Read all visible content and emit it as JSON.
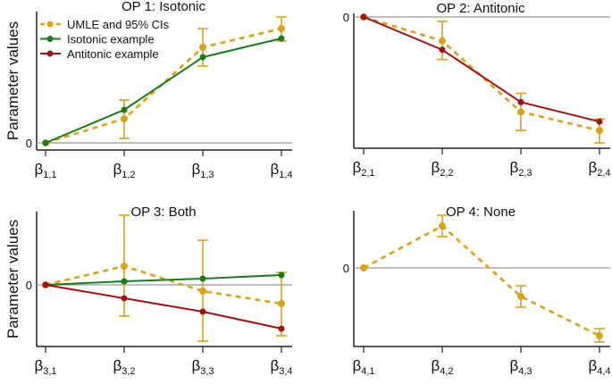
{
  "chart_data": [
    {
      "type": "line",
      "title": "OP 1: Isotonic",
      "ylabel": "Parameter values",
      "ytick_labels": [
        "0"
      ],
      "ylim": [
        -0.08,
        1.47
      ],
      "categories": [
        {
          "sym": "β",
          "sub": "1,1"
        },
        {
          "sym": "β",
          "sub": "1,2"
        },
        {
          "sym": "β",
          "sub": "1,3"
        },
        {
          "sym": "β",
          "sub": "1,4"
        }
      ],
      "umle": [
        0,
        0.27,
        1.07,
        1.28
      ],
      "ci": [
        null,
        [
          0.05,
          0.48
        ],
        [
          0.86,
          1.28
        ],
        [
          1.14,
          1.41
        ]
      ],
      "isotonic": [
        0,
        0.37,
        0.96,
        1.17
      ],
      "antitonic": null,
      "legend": {
        "placement": "top-left",
        "entries": [
          "UMLE and 95% CIs",
          "Isotonic example",
          "Antitonic example"
        ]
      }
    },
    {
      "type": "line",
      "title": "OP 2: Antitonic",
      "ylabel": "",
      "ytick_labels": [
        "0"
      ],
      "ylim": [
        -1.48,
        0.04
      ],
      "categories": [
        {
          "sym": "β",
          "sub": "2,1"
        },
        {
          "sym": "β",
          "sub": "2,2"
        },
        {
          "sym": "β",
          "sub": "2,3"
        },
        {
          "sym": "β",
          "sub": "2,4"
        }
      ],
      "umle": [
        0,
        -0.27,
        -1.07,
        -1.28
      ],
      "ci": [
        null,
        [
          -0.48,
          -0.05
        ],
        [
          -1.28,
          -0.86
        ],
        [
          -1.42,
          -1.15
        ]
      ],
      "isotonic": null,
      "antitonic": [
        0,
        -0.37,
        -0.96,
        -1.18
      ]
    },
    {
      "type": "line",
      "title": "OP 3: Both",
      "ylabel": "Parameter values",
      "ytick_labels": [
        "0"
      ],
      "ylim": [
        -0.69,
        0.82
      ],
      "categories": [
        {
          "sym": "β",
          "sub": "3,1"
        },
        {
          "sym": "β",
          "sub": "3,2"
        },
        {
          "sym": "β",
          "sub": "3,3"
        },
        {
          "sym": "β",
          "sub": "3,4"
        }
      ],
      "umle": [
        0,
        0.21,
        -0.07,
        -0.21
      ],
      "ci": [
        null,
        [
          -0.35,
          0.78
        ],
        [
          -0.63,
          0.5
        ],
        [
          -0.57,
          0.14
        ]
      ],
      "isotonic": [
        0,
        0.04,
        0.07,
        0.11
      ],
      "antitonic": [
        0,
        -0.15,
        -0.3,
        -0.49
      ]
    },
    {
      "type": "line",
      "title": "OP 4: None",
      "ylabel": "",
      "ytick_labels": [
        "0"
      ],
      "ylim": [
        -0.88,
        0.64
      ],
      "categories": [
        {
          "sym": "β",
          "sub": "4,1"
        },
        {
          "sym": "β",
          "sub": "4,2"
        },
        {
          "sym": "β",
          "sub": "4,3"
        },
        {
          "sym": "β",
          "sub": "4,4"
        }
      ],
      "umle": [
        0,
        0.47,
        -0.32,
        -0.76
      ],
      "ci": [
        null,
        [
          0.35,
          0.59
        ],
        [
          -0.44,
          -0.2
        ],
        [
          -0.83,
          -0.68
        ]
      ],
      "isotonic": null,
      "antitonic": null
    }
  ],
  "colors": {
    "umle": "#D9A21B",
    "isotonic": "#1B7A1B",
    "antitonic": "#9E1414",
    "zero_line": "#999999",
    "axis": "#222222"
  }
}
